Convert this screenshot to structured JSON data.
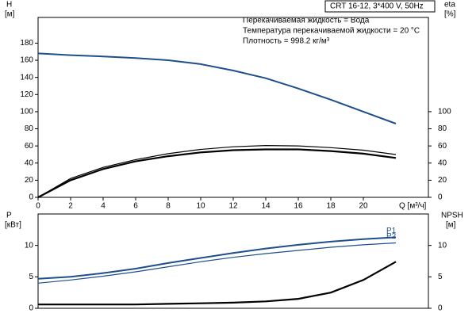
{
  "chart_data": [
    {
      "type": "line",
      "title": "CRT 16-12, 3*400 V, 50Hz",
      "annotations": [
        "Перекачиваемая жидкость = Вода",
        "Температура перекачиваемой жидкости = 20 °C",
        "Плотность = 998.2 кг/м³"
      ],
      "ylabel": "H",
      "yunit": "[м]",
      "y2label": "eta",
      "y2unit": "[%]",
      "xlabel": "Q [м³/ч]",
      "x": [
        0,
        2,
        4,
        6,
        8,
        10,
        12,
        14,
        16,
        18,
        20,
        22
      ],
      "xlim": [
        0,
        24
      ],
      "xticks": [
        0,
        2,
        4,
        6,
        8,
        10,
        12,
        14,
        16,
        18,
        20
      ],
      "ylim": [
        0,
        210
      ],
      "yticks": [
        0,
        20,
        40,
        60,
        80,
        100,
        120,
        140,
        160,
        180
      ],
      "y2lim": [
        0,
        210
      ],
      "y2ticks": [
        0,
        20,
        40,
        60,
        80,
        100
      ],
      "series": [
        {
          "color": "#1f4e8c",
          "width": 2,
          "values": [
            168,
            166,
            164.5,
            162.5,
            160,
            155.5,
            148,
            139,
            127,
            114,
            100,
            86
          ]
        },
        {
          "color": "#000000",
          "width": 1.2,
          "axis": "y2",
          "values": [
            0,
            22,
            35,
            44,
            51,
            56,
            59,
            60.5,
            60,
            58,
            55,
            50
          ]
        },
        {
          "color": "#000000",
          "width": 2.2,
          "axis": "y2",
          "values": [
            0,
            20,
            33,
            42,
            48,
            52.5,
            55,
            56,
            56,
            54,
            51,
            46
          ]
        }
      ]
    },
    {
      "type": "line",
      "ylabel": "P",
      "yunit": "[кВт]",
      "y2label": "NPSH",
      "y2unit": "[м]",
      "x": [
        0,
        2,
        4,
        6,
        8,
        10,
        12,
        14,
        16,
        18,
        20,
        22
      ],
      "xlim": [
        0,
        24
      ],
      "ylim": [
        0,
        15
      ],
      "yticks": [
        0,
        5,
        10
      ],
      "y2lim": [
        0,
        15
      ],
      "y2ticks": [
        0,
        5,
        10
      ],
      "series": [
        {
          "name": "P1",
          "color": "#1f4e8c",
          "width": 2,
          "values": [
            4.7,
            5.0,
            5.6,
            6.3,
            7.2,
            8.0,
            8.8,
            9.5,
            10.1,
            10.6,
            11.0,
            11.3
          ]
        },
        {
          "name": "P2",
          "color": "#1f4e8c",
          "width": 1.2,
          "values": [
            4.0,
            4.5,
            5.1,
            5.8,
            6.6,
            7.4,
            8.1,
            8.7,
            9.2,
            9.7,
            10.1,
            10.4
          ]
        },
        {
          "color": "#000000",
          "width": 2.2,
          "axis": "y2",
          "values": [
            0.6,
            0.6,
            0.6,
            0.6,
            0.7,
            0.8,
            0.9,
            1.1,
            1.5,
            2.5,
            4.5,
            7.4
          ]
        }
      ]
    }
  ]
}
